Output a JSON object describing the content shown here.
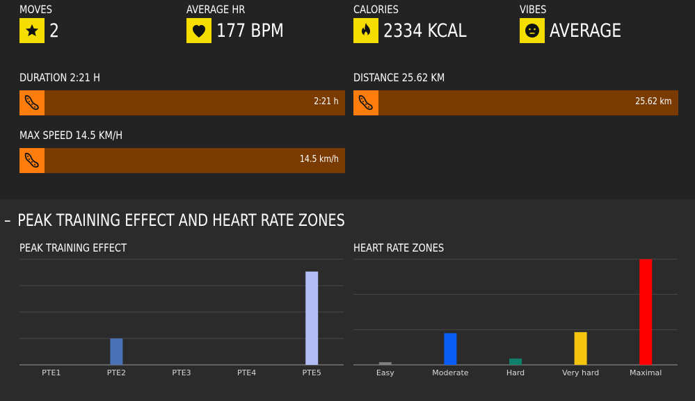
{
  "stats": [
    {
      "label": "MOVES",
      "value": "2",
      "icon": "star-icon"
    },
    {
      "label": "AVERAGE HR",
      "value": "177 BPM",
      "icon": "heart-icon"
    },
    {
      "label": "CALORIES",
      "value": "2334 KCAL",
      "icon": "flame-icon"
    },
    {
      "label": "VIBES",
      "value": "AVERAGE",
      "icon": "neutral-face-icon"
    }
  ],
  "bars": {
    "duration": {
      "label": "DURATION 2:21 H",
      "value": "2:21 h",
      "icon": "shoe-icon"
    },
    "distance": {
      "label": "DISTANCE 25.62 KM",
      "value": "25.62 km",
      "icon": "shoe-icon"
    },
    "max_speed": {
      "label": "MAX SPEED 14.5 KM/H",
      "value": "14.5 km/h",
      "icon": "shoe-icon"
    }
  },
  "colors": {
    "accent_yellow": "#f6dd00",
    "bar_fill": "#7a3b02",
    "bar_icon": "#ff7d0c"
  },
  "section": {
    "collapse_symbol": "–",
    "title": "PEAK TRAINING EFFECT AND HEART RATE ZONES"
  },
  "chart_data": [
    {
      "type": "bar",
      "title": "PEAK TRAINING EFFECT",
      "categories": [
        "PTE1",
        "PTE2",
        "PTE3",
        "PTE4",
        "PTE5"
      ],
      "values": [
        0,
        1.5,
        0,
        0,
        5.3
      ],
      "ylim": [
        0,
        6
      ],
      "grid": true,
      "colors": [
        "#4a72b8",
        "#4a72b8",
        "#4a72b8",
        "#4a72b8",
        "#b3bcf5"
      ]
    },
    {
      "type": "bar",
      "title": "HEART RATE ZONES",
      "categories": [
        "Easy",
        "Moderate",
        "Hard",
        "Very hard",
        "Maximal"
      ],
      "values": [
        0.05,
        0.6,
        0.12,
        0.62,
        2.0
      ],
      "ylim": [
        0,
        2
      ],
      "grid": true,
      "colors": [
        "#808080",
        "#0a5cf2",
        "#11806a",
        "#f4c40f",
        "#ff0000"
      ]
    }
  ]
}
